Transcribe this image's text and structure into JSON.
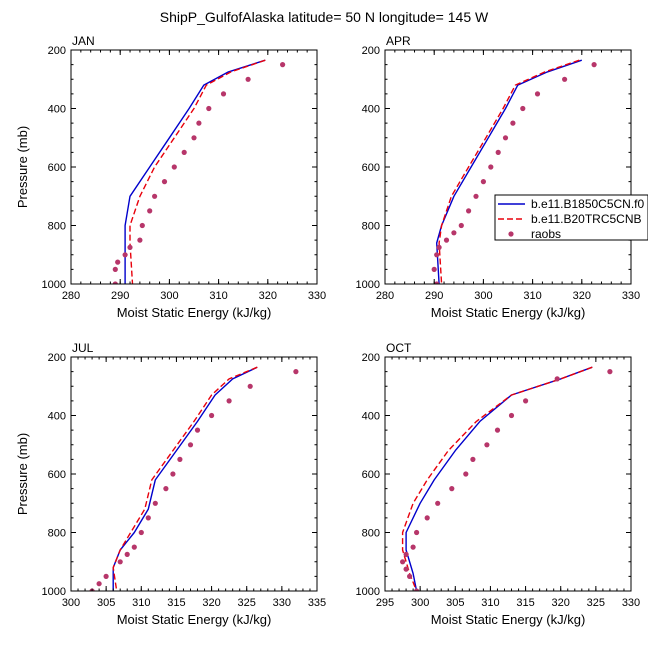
{
  "title": "ShipP_GulfofAlaska  latitude= 50 N longitude= 145 W",
  "legend": {
    "placement": "right of APR panel",
    "entries": [
      {
        "label": "b.e11.B1850C5CN.f0",
        "style": "solid",
        "color": "#0000cc"
      },
      {
        "label": "b.e11.B20TRC5CNB",
        "style": "dashed",
        "color": "#e8000b"
      },
      {
        "label": "raobs",
        "style": "dot",
        "color": "#b7366a"
      }
    ]
  },
  "colors": {
    "model1": "#0000cc",
    "model2": "#e8000b",
    "obs": "#b7366a"
  },
  "chart_data": [
    {
      "type": "line",
      "label": "JAN",
      "xlabel": "Moist Static Energy (kJ/kg)",
      "ylabel": "Pressure (mb)",
      "xlim": [
        280,
        330
      ],
      "ylim": [
        1000,
        200
      ],
      "xticks": [
        280,
        290,
        300,
        310,
        320,
        330
      ],
      "yticks": [
        200,
        400,
        600,
        800,
        1000
      ],
      "series": [
        {
          "name": "b.e11.B1850C5CN.f0",
          "style": "solid",
          "x": [
            319.5,
            312,
            307,
            304,
            300,
            296,
            292,
            291,
            291,
            291
          ],
          "y": [
            235,
            275,
            320,
            400,
            500,
            600,
            700,
            800,
            860,
            1000
          ]
        },
        {
          "name": "b.e11.B20TRC5CNB",
          "style": "dashed",
          "x": [
            319.5,
            312.5,
            307.5,
            305,
            301,
            297,
            294,
            292,
            292,
            292.5
          ],
          "y": [
            235,
            275,
            320,
            400,
            500,
            600,
            700,
            800,
            860,
            1000
          ]
        },
        {
          "name": "raobs",
          "style": "dot",
          "x": [
            323,
            316,
            311,
            308,
            306,
            305,
            303,
            301,
            299,
            297,
            296,
            294.5,
            294,
            292,
            291,
            289.5,
            289,
            289
          ],
          "y": [
            250,
            300,
            350,
            400,
            450,
            500,
            550,
            600,
            650,
            700,
            750,
            800,
            850,
            875,
            900,
            925,
            950,
            1000
          ]
        }
      ]
    },
    {
      "type": "line",
      "label": "APR",
      "xlabel": "Moist Static Energy (kJ/kg)",
      "ylabel": "",
      "xlim": [
        280,
        330
      ],
      "ylim": [
        1000,
        200
      ],
      "xticks": [
        280,
        290,
        300,
        310,
        320,
        330
      ],
      "yticks": [
        200,
        400,
        600,
        800,
        1000
      ],
      "series": [
        {
          "name": "b.e11.B1850C5CN.f0",
          "style": "solid",
          "x": [
            320,
            313,
            307,
            304.5,
            301,
            297.5,
            294,
            291.5,
            290.5,
            291
          ],
          "y": [
            235,
            275,
            320,
            400,
            500,
            600,
            700,
            800,
            860,
            1000
          ]
        },
        {
          "name": "b.e11.B20TRC5CNB",
          "style": "dashed",
          "x": [
            319.5,
            312.5,
            306.5,
            304,
            300.5,
            297,
            293.5,
            291.5,
            291,
            291.5
          ],
          "y": [
            235,
            275,
            320,
            400,
            500,
            600,
            700,
            800,
            860,
            1000
          ]
        },
        {
          "name": "raobs",
          "style": "dot",
          "x": [
            322.5,
            316.5,
            311,
            308,
            306,
            304.5,
            303,
            301.5,
            300,
            298.5,
            297,
            295.5,
            294,
            292.5,
            291,
            290.5,
            290,
            290.5
          ],
          "y": [
            250,
            300,
            350,
            400,
            450,
            500,
            550,
            600,
            650,
            700,
            750,
            800,
            825,
            850,
            875,
            900,
            950,
            1000
          ]
        }
      ]
    },
    {
      "type": "line",
      "label": "JUL",
      "xlabel": "Moist Static Energy (kJ/kg)",
      "ylabel": "Pressure (mb)",
      "xlim": [
        300,
        335
      ],
      "ylim": [
        1000,
        200
      ],
      "xticks": [
        300,
        305,
        310,
        315,
        320,
        325,
        330,
        335
      ],
      "yticks": [
        200,
        400,
        600,
        800,
        1000
      ],
      "series": [
        {
          "name": "b.e11.B1850C5CN.f0",
          "style": "solid",
          "x": [
            326.5,
            323,
            320.5,
            318,
            315,
            312,
            311,
            309,
            307,
            306,
            306
          ],
          "y": [
            235,
            275,
            330,
            420,
            520,
            620,
            720,
            800,
            860,
            920,
            1000
          ]
        },
        {
          "name": "b.e11.B20TRC5CNB",
          "style": "dashed",
          "x": [
            326.5,
            322.5,
            320,
            317.5,
            314.5,
            311.5,
            310.5,
            308.5,
            307,
            306,
            306.5
          ],
          "y": [
            235,
            275,
            330,
            420,
            520,
            620,
            720,
            800,
            860,
            920,
            1000
          ]
        },
        {
          "name": "raobs",
          "style": "dot",
          "x": [
            332,
            325.5,
            322.5,
            320,
            318,
            317,
            315.5,
            314.5,
            313.5,
            312,
            311,
            310,
            309,
            308,
            307,
            305,
            304,
            303
          ],
          "y": [
            250,
            300,
            350,
            400,
            450,
            500,
            550,
            600,
            650,
            700,
            750,
            800,
            850,
            875,
            900,
            950,
            975,
            1000
          ]
        }
      ]
    },
    {
      "type": "line",
      "label": "OCT",
      "xlabel": "Moist Static Energy (kJ/kg)",
      "ylabel": "",
      "xlim": [
        295,
        330
      ],
      "ylim": [
        1000,
        200
      ],
      "xticks": [
        295,
        300,
        305,
        310,
        315,
        320,
        325,
        330
      ],
      "yticks": [
        200,
        400,
        600,
        800,
        1000
      ],
      "series": [
        {
          "name": "b.e11.B1850C5CN.f0",
          "style": "solid",
          "x": [
            324.5,
            320,
            313,
            308.5,
            305,
            302,
            300,
            298,
            298,
            299,
            299.5
          ],
          "y": [
            235,
            275,
            330,
            420,
            520,
            620,
            700,
            800,
            860,
            940,
            1000
          ]
        },
        {
          "name": "b.e11.B20TRC5CNB",
          "style": "dashed",
          "x": [
            324.5,
            320,
            313,
            308,
            304,
            301,
            299,
            297.5,
            297.5,
            298.5,
            299.5
          ],
          "y": [
            235,
            275,
            330,
            420,
            520,
            620,
            700,
            800,
            860,
            940,
            1000
          ]
        },
        {
          "name": "raobs",
          "style": "dot",
          "x": [
            327,
            319.5,
            315,
            313,
            311,
            309.5,
            307.5,
            306.5,
            304.5,
            302.5,
            301,
            299.5,
            299,
            298,
            297.5,
            298,
            298.5,
            299.5
          ],
          "y": [
            250,
            275,
            350,
            400,
            450,
            500,
            550,
            600,
            650,
            700,
            750,
            800,
            850,
            875,
            900,
            925,
            950,
            1000
          ]
        }
      ]
    }
  ]
}
